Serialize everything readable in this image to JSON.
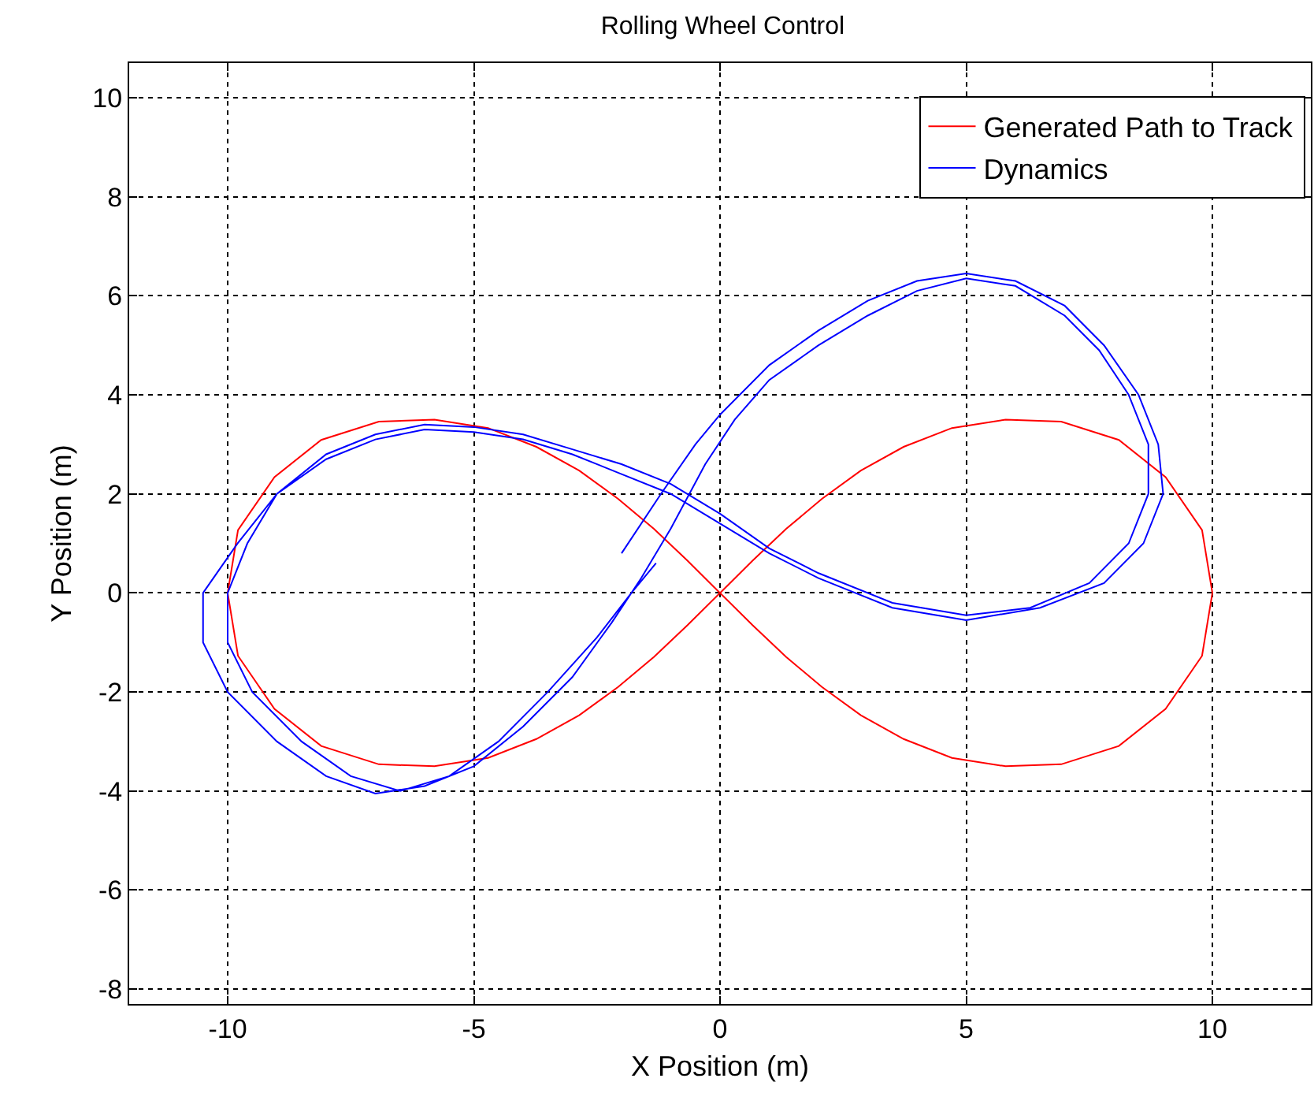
{
  "chart_data": {
    "type": "line",
    "title": "Rolling Wheel Control",
    "xlabel": "X Position (m)",
    "ylabel": "Y Position (m)",
    "xlim": [
      -12,
      12
    ],
    "xticks": [
      -10,
      -5,
      0,
      5,
      10
    ],
    "ylim": [
      -8.3,
      10.7
    ],
    "yticks": [
      -8,
      -6,
      -4,
      -2,
      0,
      2,
      4,
      6,
      8,
      10
    ],
    "grid": true,
    "legend": "top right",
    "marker": "none",
    "line_style": "solid",
    "series": [
      {
        "name": "Generated Path to Track",
        "color": "#ff0000",
        "x": [
          10,
          9.79,
          9.05,
          8.1,
          6.93,
          5.8,
          4.71,
          3.73,
          2.86,
          2.07,
          1.34,
          0.66,
          0,
          -0.66,
          -1.34,
          -2.07,
          -2.86,
          -3.73,
          -4.71,
          -5.8,
          -6.93,
          -8.1,
          -9.05,
          -9.79,
          -10,
          -9.79,
          -9.05,
          -8.1,
          -6.93,
          -5.8,
          -4.71,
          -3.73,
          -2.86,
          -2.07,
          -1.34,
          -0.66,
          0,
          0.66,
          1.34,
          2.07,
          2.86,
          3.73,
          4.71,
          5.8,
          6.93,
          8.1,
          9.05,
          9.79,
          10,
          9.79
        ],
        "values": [
          0,
          1.27,
          2.34,
          3.09,
          3.46,
          3.5,
          3.33,
          2.95,
          2.47,
          1.9,
          1.29,
          0.65,
          0,
          -0.65,
          -1.29,
          -1.9,
          -2.47,
          -2.95,
          -3.33,
          -3.5,
          -3.46,
          -3.09,
          -2.34,
          -1.27,
          0,
          1.27,
          2.34,
          3.09,
          3.46,
          3.5,
          3.33,
          2.95,
          2.47,
          1.9,
          1.29,
          0.65,
          0,
          -0.65,
          -1.29,
          -1.9,
          -2.47,
          -2.95,
          -3.33,
          -3.5,
          -3.46,
          -3.09,
          -2.34,
          -1.27,
          0,
          1.27
        ]
      },
      {
        "name": "Dynamics",
        "color": "#0000ff",
        "x": [
          -2,
          -1.2,
          -0.5,
          0,
          1,
          2,
          3,
          4,
          5,
          6,
          7,
          7.8,
          8.5,
          8.9,
          9,
          8.6,
          7.8,
          6.5,
          5,
          3.5,
          2,
          1,
          0,
          -1,
          -2,
          -3,
          -4,
          -5,
          -6,
          -7,
          -8,
          -9,
          -9.8,
          -10.5,
          -10.5,
          -10,
          -9,
          -8,
          -7,
          -6,
          -5,
          -4,
          -3,
          -2.2,
          -1.6,
          -1,
          -0.3,
          0.3,
          1,
          2,
          3,
          4,
          5,
          6,
          7,
          7.7,
          8.3,
          8.7,
          8.7,
          8.3,
          7.5,
          6.3,
          5,
          3.5,
          2,
          1,
          0,
          -1,
          -2,
          -3,
          -4,
          -5,
          -6,
          -7,
          -8,
          -9,
          -9.6,
          -10,
          -10,
          -9.5,
          -8.5,
          -7.5,
          -6.5,
          -5.5,
          -4.5,
          -3.5,
          -2.5,
          -1.8,
          -1.3
        ],
        "values": [
          0.8,
          2,
          3,
          3.6,
          4.6,
          5.3,
          5.9,
          6.3,
          6.45,
          6.3,
          5.8,
          5,
          4,
          3,
          2,
          1,
          0.2,
          -0.3,
          -0.55,
          -0.3,
          0.3,
          0.8,
          1.4,
          2,
          2.4,
          2.8,
          3.1,
          3.25,
          3.3,
          3.1,
          2.7,
          2,
          1,
          0,
          -1,
          -2,
          -3,
          -3.7,
          -4.05,
          -3.9,
          -3.5,
          -2.7,
          -1.7,
          -0.6,
          0.3,
          1.3,
          2.6,
          3.5,
          4.3,
          5,
          5.6,
          6.1,
          6.35,
          6.2,
          5.6,
          4.9,
          4,
          3,
          2,
          1,
          0.2,
          -0.3,
          -0.45,
          -0.2,
          0.4,
          0.9,
          1.6,
          2.2,
          2.6,
          2.9,
          3.2,
          3.35,
          3.4,
          3.2,
          2.8,
          2,
          1,
          0,
          -1,
          -2,
          -3,
          -3.7,
          -4,
          -3.7,
          -3,
          -2,
          -0.9,
          0,
          0.6
        ]
      }
    ]
  }
}
